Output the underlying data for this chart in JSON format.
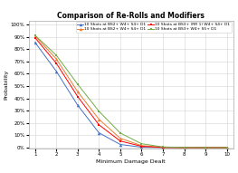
{
  "title": "Comparison of Re-Rolls and Modifiers",
  "xlabel": "Minimum Damage Dealt",
  "ylabel": "Probability",
  "x": [
    1,
    2,
    3,
    4,
    5,
    6,
    7,
    8,
    9,
    10
  ],
  "series": [
    {
      "label": "10 Shots at BS2+ W4+ S4+ D1",
      "color": "#4472C4",
      "y": [
        0.855,
        0.62,
        0.345,
        0.12,
        0.025,
        0.003,
        0.0,
        0.0,
        0.0,
        0.0
      ]
    },
    {
      "label": "10 Shots at BS2+ W4+ S4+ D1",
      "color": "#ED7D31",
      "y": [
        0.908,
        0.72,
        0.455,
        0.23,
        0.075,
        0.016,
        0.002,
        0.0,
        0.0,
        0.0
      ]
    },
    {
      "label": "10 Shots at BS3+ (RR 1) W4+ S4+ D1",
      "color": "#FF0000",
      "y": [
        0.893,
        0.685,
        0.415,
        0.185,
        0.053,
        0.01,
        0.001,
        0.0,
        0.0,
        0.0
      ]
    },
    {
      "label": "10 Shots at BS3+ W4+ S5+ D1",
      "color": "#70AD47",
      "y": [
        0.913,
        0.75,
        0.515,
        0.295,
        0.118,
        0.031,
        0.005,
        0.001,
        0.0,
        0.0
      ]
    }
  ],
  "background_color": "#FFFFFF",
  "grid_color": "#D3D3D3",
  "title_fontsize": 5.5,
  "label_fontsize": 4.5,
  "tick_fontsize": 4.0,
  "legend_fontsize": 3.2
}
